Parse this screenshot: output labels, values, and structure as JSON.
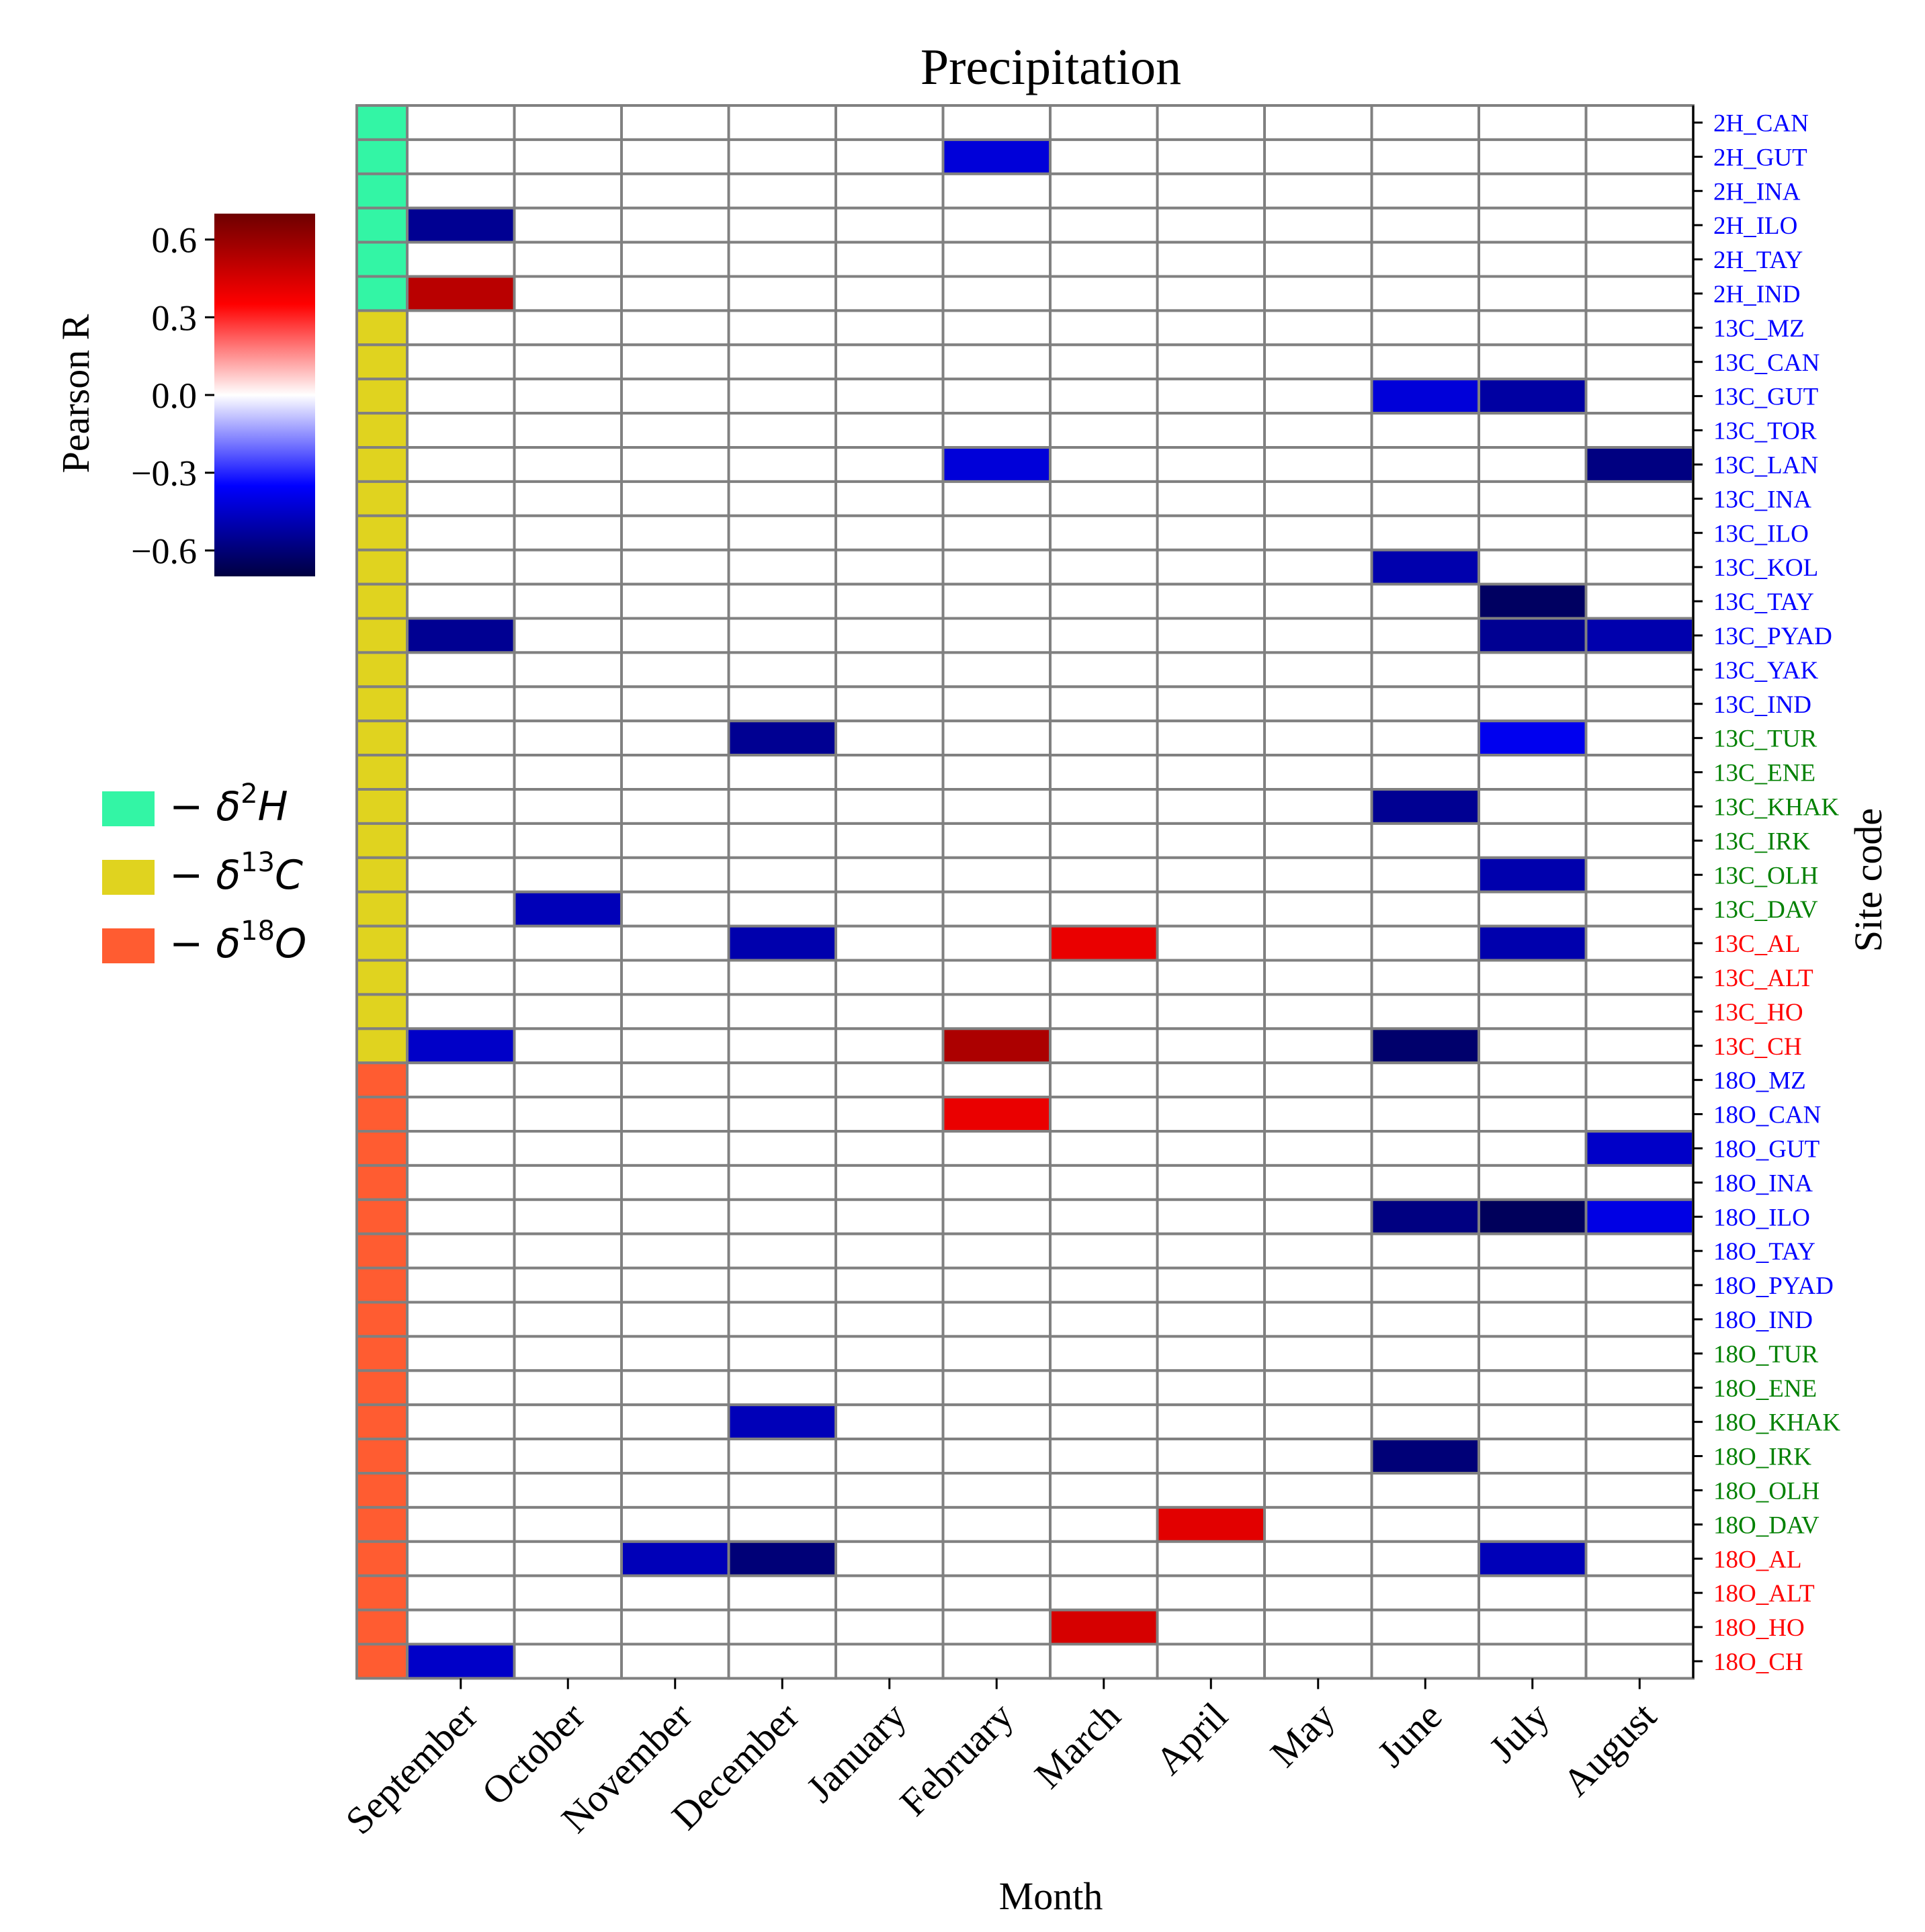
{
  "chart_data": {
    "type": "heatmap",
    "title": "Precipitation",
    "xlabel": "Month",
    "ylabel": "Site code",
    "x_categories": [
      "September",
      "October",
      "November",
      "December",
      "January",
      "February",
      "March",
      "April",
      "May",
      "June",
      "July",
      "August"
    ],
    "rows": [
      {
        "label": "2H_CAN",
        "group": "2H",
        "label_color": "#0000ff"
      },
      {
        "label": "2H_GUT",
        "group": "2H",
        "label_color": "#0000ff"
      },
      {
        "label": "2H_INA",
        "group": "2H",
        "label_color": "#0000ff"
      },
      {
        "label": "2H_ILO",
        "group": "2H",
        "label_color": "#0000ff"
      },
      {
        "label": "2H_TAY",
        "group": "2H",
        "label_color": "#0000ff"
      },
      {
        "label": "2H_IND",
        "group": "2H",
        "label_color": "#0000ff"
      },
      {
        "label": "13C_MZ",
        "group": "13C",
        "label_color": "#0000ff"
      },
      {
        "label": "13C_CAN",
        "group": "13C",
        "label_color": "#0000ff"
      },
      {
        "label": "13C_GUT",
        "group": "13C",
        "label_color": "#0000ff"
      },
      {
        "label": "13C_TOR",
        "group": "13C",
        "label_color": "#0000ff"
      },
      {
        "label": "13C_LAN",
        "group": "13C",
        "label_color": "#0000ff"
      },
      {
        "label": "13C_INA",
        "group": "13C",
        "label_color": "#0000ff"
      },
      {
        "label": "13C_ILO",
        "group": "13C",
        "label_color": "#0000ff"
      },
      {
        "label": "13C_KOL",
        "group": "13C",
        "label_color": "#0000ff"
      },
      {
        "label": "13C_TAY",
        "group": "13C",
        "label_color": "#0000ff"
      },
      {
        "label": "13C_PYAD",
        "group": "13C",
        "label_color": "#0000ff"
      },
      {
        "label": "13C_YAK",
        "group": "13C",
        "label_color": "#0000ff"
      },
      {
        "label": "13C_IND",
        "group": "13C",
        "label_color": "#0000ff"
      },
      {
        "label": "13C_TUR",
        "group": "13C",
        "label_color": "#008000"
      },
      {
        "label": "13C_ENE",
        "group": "13C",
        "label_color": "#008000"
      },
      {
        "label": "13C_KHAK",
        "group": "13C",
        "label_color": "#008000"
      },
      {
        "label": "13C_IRK",
        "group": "13C",
        "label_color": "#008000"
      },
      {
        "label": "13C_OLH",
        "group": "13C",
        "label_color": "#008000"
      },
      {
        "label": "13C_DAV",
        "group": "13C",
        "label_color": "#008000"
      },
      {
        "label": "13C_AL",
        "group": "13C",
        "label_color": "#ff0000"
      },
      {
        "label": "13C_ALT",
        "group": "13C",
        "label_color": "#ff0000"
      },
      {
        "label": "13C_HO",
        "group": "13C",
        "label_color": "#ff0000"
      },
      {
        "label": "13C_CH",
        "group": "13C",
        "label_color": "#ff0000"
      },
      {
        "label": "18O_MZ",
        "group": "18O",
        "label_color": "#0000ff"
      },
      {
        "label": "18O_CAN",
        "group": "18O",
        "label_color": "#0000ff"
      },
      {
        "label": "18O_GUT",
        "group": "18O",
        "label_color": "#0000ff"
      },
      {
        "label": "18O_INA",
        "group": "18O",
        "label_color": "#0000ff"
      },
      {
        "label": "18O_ILO",
        "group": "18O",
        "label_color": "#0000ff"
      },
      {
        "label": "18O_TAY",
        "group": "18O",
        "label_color": "#0000ff"
      },
      {
        "label": "18O_PYAD",
        "group": "18O",
        "label_color": "#0000ff"
      },
      {
        "label": "18O_IND",
        "group": "18O",
        "label_color": "#0000ff"
      },
      {
        "label": "18O_TUR",
        "group": "18O",
        "label_color": "#008000"
      },
      {
        "label": "18O_ENE",
        "group": "18O",
        "label_color": "#008000"
      },
      {
        "label": "18O_KHAK",
        "group": "18O",
        "label_color": "#008000"
      },
      {
        "label": "18O_IRK",
        "group": "18O",
        "label_color": "#008000"
      },
      {
        "label": "18O_OLH",
        "group": "18O",
        "label_color": "#008000"
      },
      {
        "label": "18O_DAV",
        "group": "18O",
        "label_color": "#008000"
      },
      {
        "label": "18O_AL",
        "group": "18O",
        "label_color": "#ff0000"
      },
      {
        "label": "18O_ALT",
        "group": "18O",
        "label_color": "#ff0000"
      },
      {
        "label": "18O_HO",
        "group": "18O",
        "label_color": "#ff0000"
      },
      {
        "label": "18O_CH",
        "group": "18O",
        "label_color": "#ff0000"
      }
    ],
    "values": [
      {
        "row": "2H_GUT",
        "month": "February",
        "r": -0.42
      },
      {
        "row": "2H_ILO",
        "month": "September",
        "r": -0.55
      },
      {
        "row": "2H_IND",
        "month": "September",
        "r": 0.52
      },
      {
        "row": "13C_GUT",
        "month": "June",
        "r": -0.42
      },
      {
        "row": "13C_GUT",
        "month": "July",
        "r": -0.52
      },
      {
        "row": "13C_LAN",
        "month": "February",
        "r": -0.42
      },
      {
        "row": "13C_LAN",
        "month": "August",
        "r": -0.58
      },
      {
        "row": "13C_KOL",
        "month": "June",
        "r": -0.5
      },
      {
        "row": "13C_TAY",
        "month": "July",
        "r": -0.64
      },
      {
        "row": "13C_PYAD",
        "month": "September",
        "r": -0.55
      },
      {
        "row": "13C_PYAD",
        "month": "July",
        "r": -0.55
      },
      {
        "row": "13C_PYAD",
        "month": "August",
        "r": -0.5
      },
      {
        "row": "13C_TUR",
        "month": "December",
        "r": -0.55
      },
      {
        "row": "13C_TUR",
        "month": "July",
        "r": -0.38
      },
      {
        "row": "13C_KHAK",
        "month": "June",
        "r": -0.55
      },
      {
        "row": "13C_OLH",
        "month": "July",
        "r": -0.5
      },
      {
        "row": "13C_DAV",
        "month": "October",
        "r": -0.48
      },
      {
        "row": "13C_AL",
        "month": "December",
        "r": -0.5
      },
      {
        "row": "13C_AL",
        "month": "March",
        "r": 0.4
      },
      {
        "row": "13C_AL",
        "month": "July",
        "r": -0.5
      },
      {
        "row": "13C_CH",
        "month": "September",
        "r": -0.45
      },
      {
        "row": "13C_CH",
        "month": "February",
        "r": 0.55
      },
      {
        "row": "13C_CH",
        "month": "June",
        "r": -0.62
      },
      {
        "row": "18O_CAN",
        "month": "February",
        "r": 0.4
      },
      {
        "row": "18O_GUT",
        "month": "August",
        "r": -0.45
      },
      {
        "row": "18O_ILO",
        "month": "June",
        "r": -0.58
      },
      {
        "row": "18O_ILO",
        "month": "July",
        "r": -0.65
      },
      {
        "row": "18O_ILO",
        "month": "August",
        "r": -0.4
      },
      {
        "row": "18O_KHAK",
        "month": "December",
        "r": -0.48
      },
      {
        "row": "18O_IRK",
        "month": "June",
        "r": -0.6
      },
      {
        "row": "18O_DAV",
        "month": "April",
        "r": 0.42
      },
      {
        "row": "18O_AL",
        "month": "November",
        "r": -0.48
      },
      {
        "row": "18O_AL",
        "month": "December",
        "r": -0.6
      },
      {
        "row": "18O_AL",
        "month": "July",
        "r": -0.48
      },
      {
        "row": "18O_HO",
        "month": "March",
        "r": 0.45
      },
      {
        "row": "18O_CH",
        "month": "September",
        "r": -0.45
      }
    ],
    "colorbar": {
      "label": "Pearson R",
      "vmin": -0.7,
      "vmax": 0.7,
      "ticks": [
        0.6,
        0.3,
        0.0,
        -0.3,
        -0.6
      ],
      "tick_labels": [
        "0.6",
        "0.3",
        "0.0",
        "−0.3",
        "−0.6"
      ]
    },
    "legend": [
      {
        "group": "2H",
        "prefix": "− δ",
        "sup": "2",
        "suffix": "H",
        "color": "#33f5a5"
      },
      {
        "group": "13C",
        "prefix": "− δ",
        "sup": "13",
        "suffix": "C",
        "color": "#e0d31f"
      },
      {
        "group": "18O",
        "prefix": "− δ",
        "sup": "18",
        "suffix": "O",
        "color": "#ff5c31"
      }
    ],
    "grid": true
  }
}
